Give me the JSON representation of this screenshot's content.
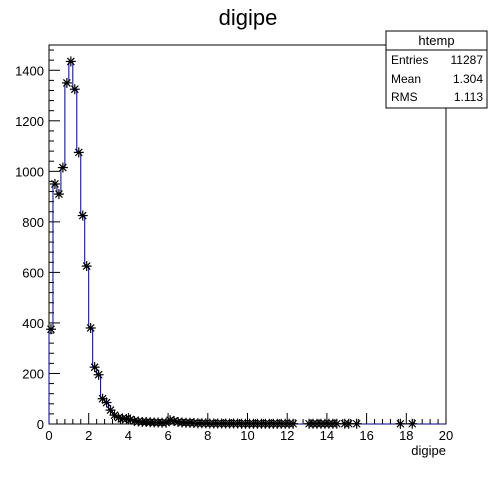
{
  "chart_data": {
    "type": "line",
    "title": "digipe",
    "xlabel": "digipe",
    "ylabel": "",
    "xlim": [
      0,
      20
    ],
    "ylim": [
      0,
      1500
    ],
    "x_ticks": [
      "0",
      "2",
      "4",
      "6",
      "8",
      "10",
      "12",
      "14",
      "16",
      "18",
      "20"
    ],
    "y_ticks": [
      "0",
      "200",
      "400",
      "600",
      "800",
      "1000",
      "1200",
      "1400"
    ],
    "grid": false,
    "series": [
      {
        "x": [
          0.1,
          0.3,
          0.5,
          0.7,
          0.9,
          1.1,
          1.3,
          1.5,
          1.7,
          1.9,
          2.1,
          2.3,
          2.5,
          2.7,
          2.9,
          3.1,
          3.3,
          3.5,
          3.7,
          3.9,
          4.1,
          4.3,
          4.5,
          4.7,
          4.9,
          5.1,
          5.3,
          5.5,
          5.7,
          5.9,
          6.1,
          6.3,
          6.5,
          6.7,
          6.9,
          7.1,
          7.3,
          7.5,
          7.7,
          7.9,
          8.1,
          8.3,
          8.5,
          8.7,
          8.9,
          9.1,
          9.3,
          9.5,
          9.7,
          9.9,
          10.1,
          10.3,
          10.5,
          10.7,
          10.9,
          11.1,
          11.3,
          11.5,
          11.7,
          11.9,
          12.1,
          12.3,
          13.1,
          13.3,
          13.5,
          13.7,
          13.9,
          14.1,
          14.3,
          14.5,
          14.9,
          15.1,
          15.5,
          17.7,
          18.3
        ],
        "values": [
          375,
          950,
          910,
          1015,
          1350,
          1435,
          1325,
          1075,
          825,
          625,
          380,
          225,
          195,
          100,
          85,
          55,
          35,
          25,
          22,
          20,
          18,
          12,
          10,
          8,
          8,
          7,
          6,
          6,
          5,
          5,
          15,
          12,
          8,
          6,
          5,
          5,
          4,
          3,
          3,
          3,
          2,
          2,
          2,
          2,
          2,
          2,
          2,
          2,
          1,
          1,
          1,
          1,
          1,
          1,
          1,
          1,
          1,
          1,
          1,
          1,
          1,
          1,
          1,
          1,
          1,
          1,
          1,
          1,
          1,
          1,
          1,
          1,
          1,
          1,
          1
        ]
      }
    ],
    "stats_box": {
      "name": "htemp",
      "rows": [
        {
          "label": "Entries",
          "value": "11287"
        },
        {
          "label": "Mean",
          "value": "1.304"
        },
        {
          "label": "RMS",
          "value": "1.113"
        }
      ]
    }
  },
  "colors": {
    "line": "#00007f",
    "marker": "#000000",
    "frame": "#000000"
  }
}
